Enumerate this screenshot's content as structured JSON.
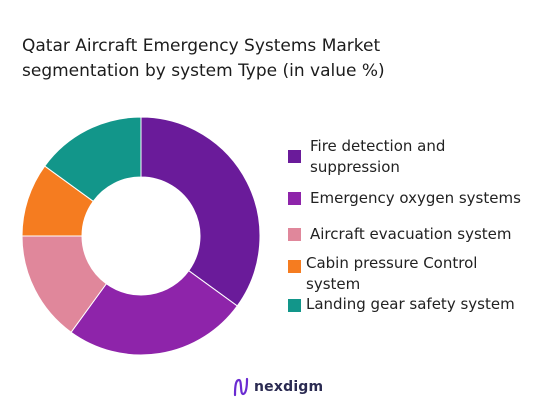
{
  "chart_data": {
    "type": "donut",
    "title_lines": [
      "Qatar Aircraft Emergency Systems Market",
      "segmentation by system Type (in value %)"
    ],
    "categories": [
      "Fire detection and suppression",
      "Emergency oxygen systems",
      "Aircraft evacuation system",
      "Cabin pressure Control system",
      "Landing gear safety system"
    ],
    "values": [
      35,
      25,
      15,
      10,
      15
    ],
    "unit": "%",
    "colors": [
      "#6a1b9a",
      "#8e24aa",
      "#e0879b",
      "#f57c20",
      "#12968a"
    ],
    "legend_position": "right"
  },
  "legend": [
    {
      "label_lines": [
        "Fire detection and",
        "suppression"
      ],
      "color": "#6a1b9a"
    },
    {
      "label_lines": [
        "Emergency oxygen systems"
      ],
      "color": "#8e24aa"
    },
    {
      "label_lines": [
        "Aircraft evacuation system"
      ],
      "color": "#e0879b"
    },
    {
      "label_lines": [
        "Cabin pressure Control",
        "system"
      ],
      "color": "#f57c20"
    },
    {
      "label_lines": [
        "Landing gear safety system"
      ],
      "color": "#12968a"
    }
  ],
  "footer": {
    "brand": "nexdigm",
    "logo_icon": "nexdigm-logo-icon"
  }
}
